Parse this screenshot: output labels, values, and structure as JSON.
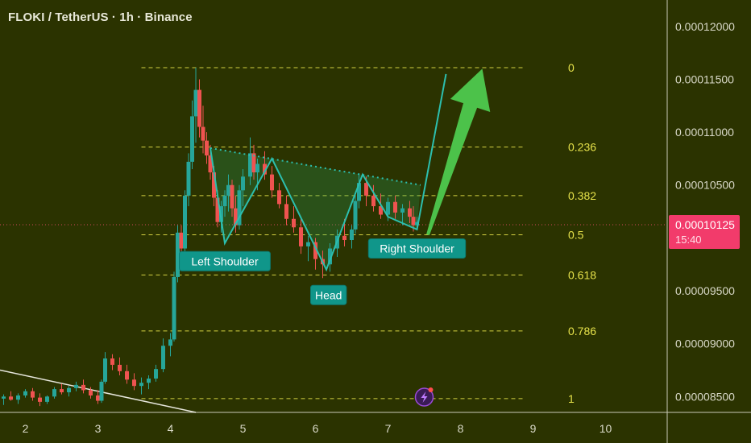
{
  "header": {
    "title": "FLOKI / TetherUS · 1h · Binance"
  },
  "colors": {
    "background": "#2b3300",
    "bull": "#26a69a",
    "bear": "#ef5350",
    "fib": "#e6e24a",
    "pattern": "#2cbfae",
    "arrow": "#4cc24a",
    "price_badge": "#f23b6b",
    "axis_text": "#d9d9c8"
  },
  "chart_data": {
    "type": "candlestick",
    "title": "FLOKI / TetherUS · 1h · Binance",
    "y_axis": {
      "ticks": [
        "0.00012000",
        "0.00011500",
        "0.00011000",
        "0.00010500",
        "0.00009500",
        "0.00009000",
        "0.00008500"
      ],
      "ylim": [
        8.35e-05,
        0.0001225
      ]
    },
    "x_axis": {
      "ticks": [
        "2",
        "3",
        "4",
        "5",
        "6",
        "7",
        "8",
        "9",
        "10"
      ],
      "xlim": [
        1.65,
        10.85
      ]
    },
    "current_price": {
      "value": "0.00010125",
      "countdown": "15:40"
    },
    "fib_levels": [
      {
        "label": "0",
        "price": 0.0001161
      },
      {
        "label": "0.236",
        "price": 0.0001086
      },
      {
        "label": "0.382",
        "price": 0.000104
      },
      {
        "label": "0.5",
        "price": 0.0001003
      },
      {
        "label": "0.618",
        "price": 9.65e-05
      },
      {
        "label": "0.786",
        "price": 9.12e-05
      },
      {
        "label": "1",
        "price": 8.48e-05
      }
    ],
    "annotations": [
      {
        "text": "Left Shoulder",
        "x": 4.75,
        "y": 9.78e-05
      },
      {
        "text": "Head",
        "x": 6.18,
        "y": 9.46e-05
      },
      {
        "text": "Right Shoulder",
        "x": 7.4,
        "y": 9.9e-05
      }
    ],
    "pattern_line": [
      [
        4.55,
        0.0001085
      ],
      [
        4.75,
        9.95e-05
      ],
      [
        5.4,
        0.0001075
      ],
      [
        6.15,
        9.7e-05
      ],
      [
        6.65,
        0.000106
      ],
      [
        7.0,
        0.000102
      ],
      [
        7.4,
        0.0001008
      ],
      [
        7.8,
        0.0001155
      ]
    ],
    "neckline": [
      [
        4.55,
        0.0001085
      ],
      [
        7.45,
        0.000105
      ]
    ],
    "trendline": [
      [
        1.65,
        8.75e-05
      ],
      [
        4.35,
        8.35e-05
      ]
    ],
    "projection_arrow": {
      "from": [
        7.55,
        0.0001003
      ],
      "to": [
        8.3,
        0.000116
      ]
    },
    "candles": [
      [
        1.7,
        8.48e-05,
        8.52e-05,
        8.42e-05,
        8.5e-05
      ],
      [
        1.8,
        8.5e-05,
        8.55e-05,
        8.46e-05,
        8.47e-05
      ],
      [
        1.9,
        8.47e-05,
        8.53e-05,
        8.43e-05,
        8.51e-05
      ],
      [
        2.0,
        8.51e-05,
        8.57e-05,
        8.49e-05,
        8.55e-05
      ],
      [
        2.1,
        8.55e-05,
        8.58e-05,
        8.46e-05,
        8.49e-05
      ],
      [
        2.2,
        8.49e-05,
        8.53e-05,
        8.41e-05,
        8.45e-05
      ],
      [
        2.3,
        8.45e-05,
        8.51e-05,
        8.43e-05,
        8.5e-05
      ],
      [
        2.4,
        8.5e-05,
        8.59e-05,
        8.48e-05,
        8.57e-05
      ],
      [
        2.5,
        8.57e-05,
        8.62e-05,
        8.52e-05,
        8.54e-05
      ],
      [
        2.6,
        8.54e-05,
        8.6e-05,
        8.5e-05,
        8.58e-05
      ],
      [
        2.7,
        8.58e-05,
        8.64e-05,
        8.55e-05,
        8.61e-05
      ],
      [
        2.8,
        8.61e-05,
        8.66e-05,
        8.53e-05,
        8.56e-05
      ],
      [
        2.9,
        8.56e-05,
        8.59e-05,
        8.48e-05,
        8.51e-05
      ],
      [
        3.0,
        8.51e-05,
        8.56e-05,
        8.43e-05,
        8.46e-05
      ],
      [
        3.05,
        8.46e-05,
        8.66e-05,
        8.44e-05,
        8.64e-05
      ],
      [
        3.1,
        8.64e-05,
        8.92e-05,
        8.62e-05,
        8.86e-05
      ],
      [
        3.2,
        8.86e-05,
        8.9e-05,
        8.75e-05,
        8.8e-05
      ],
      [
        3.3,
        8.8e-05,
        8.87e-05,
        8.7e-05,
        8.74e-05
      ],
      [
        3.4,
        8.74e-05,
        8.8e-05,
        8.62e-05,
        8.66e-05
      ],
      [
        3.5,
        8.66e-05,
        8.72e-05,
        8.56e-05,
        8.6e-05
      ],
      [
        3.6,
        8.6e-05,
        8.68e-05,
        8.52e-05,
        8.63e-05
      ],
      [
        3.7,
        8.63e-05,
        8.7e-05,
        8.57e-05,
        8.67e-05
      ],
      [
        3.8,
        8.67e-05,
        8.8e-05,
        8.64e-05,
        8.76e-05
      ],
      [
        3.9,
        8.76e-05,
        9.05e-05,
        8.73e-05,
        8.98e-05
      ],
      [
        4.0,
        8.98e-05,
        9.1e-05,
        8.88e-05,
        9.04e-05
      ],
      [
        4.05,
        9.04e-05,
        9.68e-05,
        9.02e-05,
        9.63e-05
      ],
      [
        4.1,
        9.63e-05,
        0.0001012,
        9.58e-05,
        0.0001005
      ],
      [
        4.15,
        0.0001005,
        0.0001012,
        9.78e-05,
        9.9e-05
      ],
      [
        4.2,
        9.9e-05,
        0.0001045,
        9.85e-05,
        0.000104
      ],
      [
        4.25,
        0.000104,
        0.000108,
        0.000103,
        0.0001072
      ],
      [
        4.3,
        0.0001072,
        0.000113,
        0.0001065,
        0.0001115
      ],
      [
        4.35,
        0.0001115,
        0.0001161,
        0.000109,
        0.000114
      ],
      [
        4.4,
        0.000114,
        0.000115,
        0.0001095,
        0.0001105
      ],
      [
        4.45,
        0.0001105,
        0.0001125,
        0.000108,
        0.0001092
      ],
      [
        4.5,
        0.0001092,
        0.00011,
        0.000107,
        0.0001078
      ],
      [
        4.55,
        0.0001078,
        0.0001088,
        0.0001055,
        0.0001062
      ],
      [
        4.6,
        0.0001062,
        0.0001068,
        0.000103,
        0.0001038
      ],
      [
        4.65,
        0.0001038,
        0.0001045,
        0.000101,
        0.0001015
      ],
      [
        4.7,
        0.0001015,
        0.0001035,
        0.0001005,
        0.000103
      ],
      [
        4.75,
        0.000103,
        0.0001045,
        0.000102,
        0.000104
      ],
      [
        4.8,
        0.000104,
        0.000106,
        0.0001025,
        0.000105
      ],
      [
        4.85,
        0.000105,
        0.0001055,
        0.000102,
        0.0001028
      ],
      [
        4.9,
        0.0001028,
        0.000104,
        0.0001005,
        0.0001012
      ],
      [
        4.95,
        0.0001012,
        0.000105,
        0.0001008,
        0.0001045
      ],
      [
        5.0,
        0.0001045,
        0.0001065,
        0.000103,
        0.0001058
      ],
      [
        5.1,
        0.0001058,
        0.0001095,
        0.000105,
        0.000108
      ],
      [
        5.15,
        0.000108,
        0.0001088,
        0.0001055,
        0.0001062
      ],
      [
        5.2,
        0.0001062,
        0.0001075,
        0.0001045,
        0.000107
      ],
      [
        5.3,
        0.000107,
        0.0001082,
        0.0001055,
        0.000106
      ],
      [
        5.4,
        0.000106,
        0.0001068,
        0.0001038,
        0.0001045
      ],
      [
        5.5,
        0.0001045,
        0.0001052,
        0.0001028,
        0.0001032
      ],
      [
        5.6,
        0.0001032,
        0.000104,
        0.0001012,
        0.0001018
      ],
      [
        5.7,
        0.0001018,
        0.000103,
        0.0001005,
        0.000101
      ],
      [
        5.8,
        0.000101,
        0.0001018,
        9.85e-05,
        9.92e-05
      ],
      [
        5.9,
        9.92e-05,
        0.0001002,
        9.78e-05,
        9.96e-05
      ],
      [
        6.0,
        9.96e-05,
        0.0001,
        9.7e-05,
        9.8e-05
      ],
      [
        6.1,
        9.8e-05,
        9.88e-05,
        9.62e-05,
        9.75e-05
      ],
      [
        6.2,
        9.75e-05,
        9.95e-05,
        9.68e-05,
        9.9e-05
      ],
      [
        6.3,
        9.9e-05,
        0.0001008,
        9.82e-05,
        0.0001002
      ],
      [
        6.4,
        0.0001002,
        0.0001018,
        9.92e-05,
        9.98e-05
      ],
      [
        6.5,
        9.98e-05,
        0.0001012,
        9.9e-05,
        0.0001008
      ],
      [
        6.55,
        0.0001008,
        0.000104,
        0.0001004,
        0.0001035
      ],
      [
        6.6,
        0.0001035,
        0.000106,
        0.0001028,
        0.0001052
      ],
      [
        6.7,
        0.0001052,
        0.0001058,
        0.000103,
        0.000104
      ],
      [
        6.8,
        0.000104,
        0.000105,
        0.0001025,
        0.000103
      ],
      [
        6.9,
        0.000103,
        0.0001042,
        0.0001018,
        0.0001022
      ],
      [
        7.0,
        0.0001022,
        0.0001038,
        0.0001016,
        0.0001034
      ],
      [
        7.1,
        0.0001034,
        0.000104,
        0.0001018,
        0.0001024
      ],
      [
        7.2,
        0.0001024,
        0.0001032,
        0.0001012,
        0.0001028
      ],
      [
        7.3,
        0.0001028,
        0.0001035,
        0.0001014,
        0.000102
      ],
      [
        7.35,
        0.000102,
        0.000103,
        0.0001006,
        0.0001012
      ],
      [
        7.4,
        0.0001012,
        0.000102,
        0.0001008,
        0.0001015
      ]
    ]
  }
}
